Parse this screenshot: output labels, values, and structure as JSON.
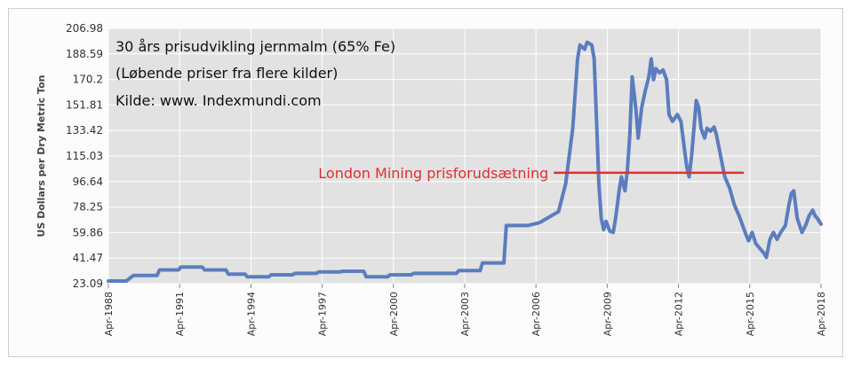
{
  "chart_data": {
    "type": "line",
    "title_lines": [
      "30 års prisudvikling jernmalm (65% Fe)",
      "(Løbende priser fra flere kilder)",
      "Kilde: www. Indexmundi.com"
    ],
    "ylabel": "US Dollars per Dry Metric Ton",
    "xlabel": "",
    "y_ticks": [
      "23.09",
      "41.47",
      "59.86",
      "78.25",
      "96.64",
      "115.03",
      "133.42",
      "151.81",
      "170.2",
      "188.59",
      "206.98"
    ],
    "x_ticks": [
      "Apr-1988",
      "Apr-1991",
      "Apr-1994",
      "Apr-1997",
      "Apr-2000",
      "Apr-2003",
      "Apr-2006",
      "Apr-2009",
      "Apr-2012",
      "Apr-2015",
      "Apr-2018"
    ],
    "x_range": [
      1988.25,
      2018.25
    ],
    "ylim": [
      23.09,
      206.98
    ],
    "grid": true,
    "series": [
      {
        "color": "#5b7dbf",
        "points": [
          [
            1988.25,
            25
          ],
          [
            1989.0,
            25
          ],
          [
            1989.3,
            29
          ],
          [
            1990.3,
            29
          ],
          [
            1990.4,
            33
          ],
          [
            1991.2,
            33
          ],
          [
            1991.3,
            35
          ],
          [
            1992.2,
            35
          ],
          [
            1992.3,
            33
          ],
          [
            1993.2,
            33
          ],
          [
            1993.3,
            30
          ],
          [
            1994.0,
            30
          ],
          [
            1994.1,
            28
          ],
          [
            1995.0,
            28
          ],
          [
            1995.1,
            29.5
          ],
          [
            1996.0,
            29.5
          ],
          [
            1996.1,
            30.5
          ],
          [
            1997.0,
            30.5
          ],
          [
            1997.1,
            31.5
          ],
          [
            1998.0,
            31.5
          ],
          [
            1998.1,
            32
          ],
          [
            1999.0,
            32
          ],
          [
            1999.1,
            28
          ],
          [
            2000.0,
            28
          ],
          [
            2000.1,
            29.5
          ],
          [
            2001.0,
            29.5
          ],
          [
            2001.1,
            30.5
          ],
          [
            2002.9,
            30.5
          ],
          [
            2003.0,
            32.5
          ],
          [
            2003.9,
            32.5
          ],
          [
            2004.0,
            38
          ],
          [
            2004.9,
            38
          ],
          [
            2005.0,
            65
          ],
          [
            2005.9,
            65
          ],
          [
            2006.4,
            67
          ],
          [
            2006.8,
            71
          ],
          [
            2007.2,
            75
          ],
          [
            2007.5,
            95
          ],
          [
            2007.8,
            135
          ],
          [
            2008.0,
            185
          ],
          [
            2008.1,
            195
          ],
          [
            2008.3,
            192
          ],
          [
            2008.4,
            197
          ],
          [
            2008.6,
            195
          ],
          [
            2008.7,
            185
          ],
          [
            2008.8,
            140
          ],
          [
            2008.9,
            95
          ],
          [
            2009.0,
            70
          ],
          [
            2009.1,
            62
          ],
          [
            2009.2,
            68
          ],
          [
            2009.35,
            61
          ],
          [
            2009.5,
            60
          ],
          [
            2009.6,
            70
          ],
          [
            2009.75,
            90
          ],
          [
            2009.85,
            100
          ],
          [
            2010.0,
            90
          ],
          [
            2010.1,
            105
          ],
          [
            2010.2,
            130
          ],
          [
            2010.3,
            172
          ],
          [
            2010.45,
            150
          ],
          [
            2010.55,
            128
          ],
          [
            2010.7,
            150
          ],
          [
            2010.85,
            162
          ],
          [
            2011.0,
            172
          ],
          [
            2011.1,
            185
          ],
          [
            2011.2,
            170
          ],
          [
            2011.3,
            178
          ],
          [
            2011.45,
            175
          ],
          [
            2011.6,
            177
          ],
          [
            2011.75,
            170
          ],
          [
            2011.85,
            145
          ],
          [
            2012.0,
            140
          ],
          [
            2012.2,
            145
          ],
          [
            2012.35,
            140
          ],
          [
            2012.5,
            120
          ],
          [
            2012.6,
            107
          ],
          [
            2012.7,
            100
          ],
          [
            2012.8,
            115
          ],
          [
            2012.9,
            135
          ],
          [
            2013.0,
            155
          ],
          [
            2013.1,
            150
          ],
          [
            2013.2,
            135
          ],
          [
            2013.35,
            128
          ],
          [
            2013.45,
            135
          ],
          [
            2013.6,
            133
          ],
          [
            2013.75,
            136
          ],
          [
            2013.85,
            130
          ],
          [
            2014.0,
            117
          ],
          [
            2014.2,
            100
          ],
          [
            2014.4,
            92
          ],
          [
            2014.6,
            80
          ],
          [
            2014.8,
            72
          ],
          [
            2014.95,
            65
          ],
          [
            2015.1,
            58
          ],
          [
            2015.2,
            54
          ],
          [
            2015.35,
            60
          ],
          [
            2015.5,
            52
          ],
          [
            2015.7,
            48
          ],
          [
            2015.85,
            45
          ],
          [
            2015.95,
            42
          ],
          [
            2016.1,
            55
          ],
          [
            2016.25,
            60
          ],
          [
            2016.4,
            55
          ],
          [
            2016.55,
            60
          ],
          [
            2016.75,
            65
          ],
          [
            2016.9,
            80
          ],
          [
            2017.0,
            88
          ],
          [
            2017.1,
            90
          ],
          [
            2017.25,
            70
          ],
          [
            2017.45,
            60
          ],
          [
            2017.6,
            65
          ],
          [
            2017.75,
            72
          ],
          [
            2017.9,
            76
          ],
          [
            2018.0,
            72
          ],
          [
            2018.1,
            70
          ],
          [
            2018.25,
            66
          ]
        ]
      }
    ],
    "reference_line": {
      "label": "London Mining prisforudsætning",
      "value": 103,
      "x_start": 2007.0,
      "x_end": 2015.0,
      "color": "#e03030"
    },
    "colors": {
      "line": "#5b7dbf",
      "reference": "#e03030",
      "plot_bg": "#e2e2e2",
      "grid": "#ffffff"
    }
  }
}
